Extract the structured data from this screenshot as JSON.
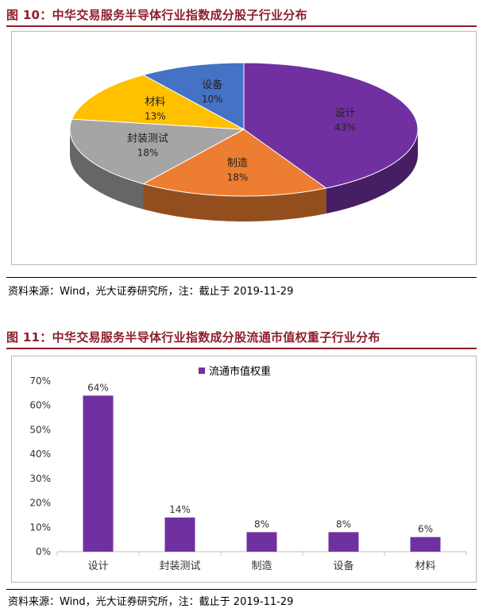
{
  "figure10": {
    "title": "图 10：中华交易服务半导体行业指数成分股子行业分布",
    "source": "资料来源：Wind，光大证券研究所，注：截止于 2019-11-29"
  },
  "figure11": {
    "title": "图 11：中华交易服务半导体行业指数成分股流通市值权重子行业分布",
    "source": "资料来源：Wind，光大证券研究所，注：截止于 2019-11-29"
  },
  "chart_data": [
    {
      "type": "pie",
      "title": "",
      "categories": [
        "设计",
        "制造",
        "封装测试",
        "材料",
        "设备"
      ],
      "values": [
        43,
        18,
        18,
        13,
        10
      ],
      "labels": [
        "43%",
        "18%",
        "18%",
        "13%",
        "10%"
      ],
      "colors": [
        "#7030a0",
        "#ed7d31",
        "#a5a5a5",
        "#ffc000",
        "#4472c4"
      ],
      "style": "3d"
    },
    {
      "type": "bar",
      "title": "",
      "categories": [
        "设计",
        "封装测试",
        "制造",
        "设备",
        "材料"
      ],
      "series": [
        {
          "name": "流通市值权重",
          "values": [
            64,
            14,
            8,
            8,
            6
          ],
          "labels": [
            "64%",
            "14%",
            "8%",
            "8%",
            "6%"
          ],
          "color": "#7030a0"
        }
      ],
      "ylim": [
        0,
        70
      ],
      "yticks": [
        "0%",
        "10%",
        "20%",
        "30%",
        "40%",
        "50%",
        "60%",
        "70%"
      ],
      "xlabel": "",
      "ylabel": "",
      "legend": "top-center",
      "grid": false
    }
  ]
}
